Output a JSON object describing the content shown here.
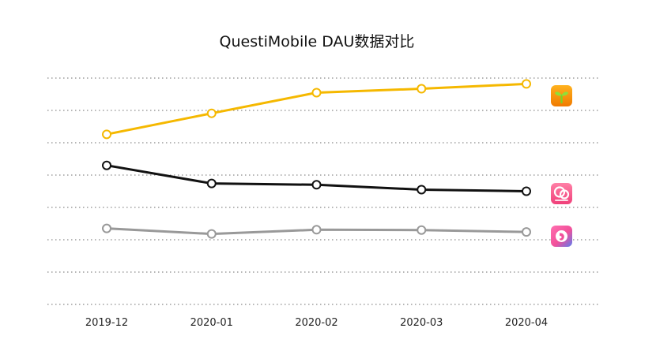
{
  "chart_data": {
    "type": "line",
    "title": "QuestiMobile DAU数据对比",
    "xlabel": "",
    "ylabel": "",
    "categories": [
      "2019-12",
      "2020-01",
      "2020-02",
      "2020-03",
      "2020-04"
    ],
    "y_tick_labels_shown": false,
    "grid": true,
    "ylim": [
      0,
      7
    ],
    "series": [
      {
        "name": "app-sprout",
        "icon": "sprout-app-icon",
        "color": "#F5B800",
        "values": [
          5.26,
          5.91,
          6.55,
          6.67,
          6.82
        ]
      },
      {
        "name": "app-babytree",
        "icon": "babytree-app-icon",
        "color": "#111111",
        "values": [
          4.3,
          3.74,
          3.7,
          3.55,
          3.5
        ]
      },
      {
        "name": "app-pregnancy",
        "icon": "pregnancy-app-icon",
        "color": "#999999",
        "values": [
          2.35,
          2.18,
          2.31,
          2.3,
          2.24
        ]
      }
    ]
  }
}
